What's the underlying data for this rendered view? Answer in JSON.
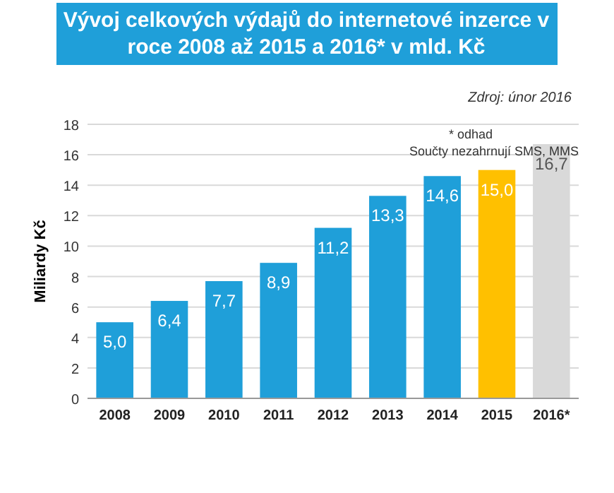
{
  "chart_data": {
    "type": "bar",
    "title": "Vývoj celkových výdajů do internetové inzerce v roce 2008 až 2015 a 2016* v mld. Kč",
    "ylabel": "Miliardy Kč",
    "categories": [
      "2008",
      "2009",
      "2010",
      "2011",
      "2012",
      "2013",
      "2014",
      "2015",
      "2016*"
    ],
    "values": [
      5.0,
      6.4,
      7.7,
      8.9,
      11.2,
      13.3,
      14.6,
      15.0,
      16.7
    ],
    "value_labels": [
      "5,0",
      "6,4",
      "7,7",
      "8,9",
      "11,2",
      "13,3",
      "14,6",
      "15,0",
      "16,7"
    ],
    "colors": [
      "#1f9fd9",
      "#1f9fd9",
      "#1f9fd9",
      "#1f9fd9",
      "#1f9fd9",
      "#1f9fd9",
      "#1f9fd9",
      "#ffc000",
      "#d9d9d9"
    ],
    "ylim": [
      0,
      18
    ],
    "yticks": [
      0,
      2,
      4,
      6,
      8,
      10,
      12,
      14,
      16,
      18
    ],
    "grid": "y",
    "annotations": [
      "Zdroj: únor 2016",
      "* odhad",
      "Součty nezahrnují SMS, MMS"
    ]
  }
}
